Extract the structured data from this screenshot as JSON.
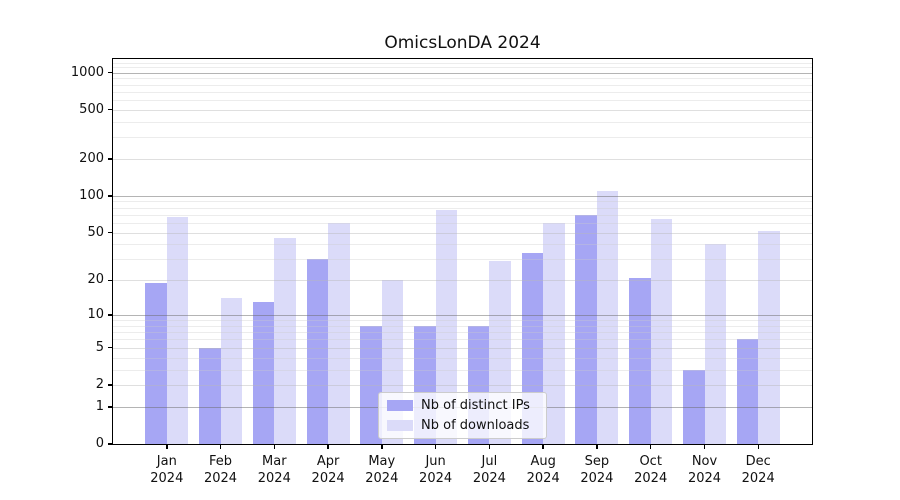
{
  "title": "OmicsLonDA 2024",
  "chart_data": {
    "type": "bar",
    "title": "OmicsLonDA 2024",
    "x_categories": [
      "Jan 2024",
      "Feb 2024",
      "Mar 2024",
      "Apr 2024",
      "May 2024",
      "Jun 2024",
      "Jul 2024",
      "Aug 2024",
      "Sep 2024",
      "Oct 2024",
      "Nov 2024",
      "Dec 2024"
    ],
    "series": [
      {
        "name": "Nb of distinct IPs",
        "color": "#a6a6f4",
        "values": [
          19,
          5,
          13,
          30,
          8,
          8,
          8,
          34,
          70,
          21,
          3,
          6
        ]
      },
      {
        "name": "Nb of downloads",
        "color": "#dbdbf9",
        "values": [
          67,
          14,
          45,
          60,
          20,
          77,
          29,
          60,
          110,
          65,
          40,
          52
        ]
      }
    ],
    "xlabel": "",
    "ylabel": "",
    "y_scale": "log10(1+x)",
    "y_ticks": [
      0,
      1,
      2,
      5,
      10,
      20,
      50,
      100,
      200,
      500,
      1000
    ],
    "y_major_gridlines": [
      1,
      10,
      100,
      1000
    ],
    "ylim": [
      0,
      1285
    ],
    "grid": "horizontal, major + minor",
    "legend_position": "lower center",
    "bar_width_fraction": 0.4
  },
  "colors": {
    "background": "#ffffff",
    "spine": "#000000",
    "major_grid": "#b6b6b6",
    "minor_grid": "#ededed",
    "tick_text": "#111111"
  }
}
